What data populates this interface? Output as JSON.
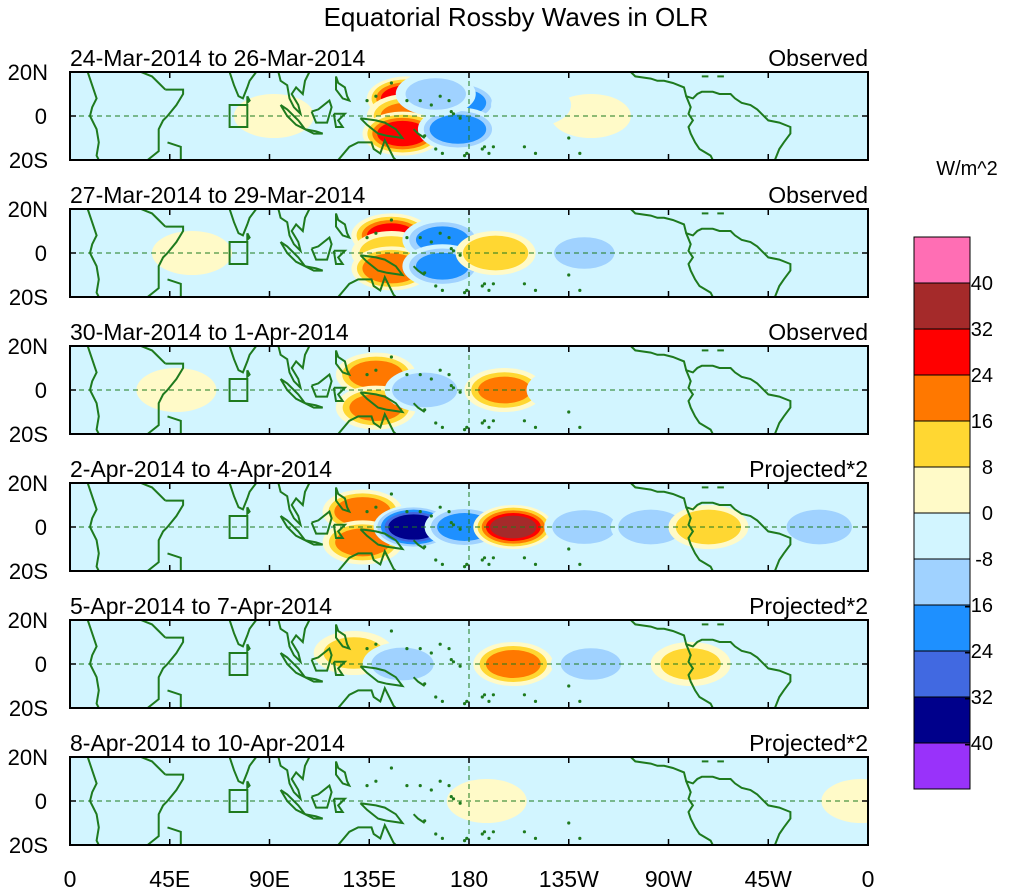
{
  "title": "Equatorial Rossby Waves in OLR",
  "x_tick_labels": [
    "0",
    "45E",
    "90E",
    "135E",
    "180",
    "135W",
    "90W",
    "45W",
    "0"
  ],
  "y_tick_labels": [
    "20N",
    "0",
    "20S"
  ],
  "panels": [
    {
      "date_range": "24-Mar-2014 to 26-Mar-2014",
      "status": "Observed"
    },
    {
      "date_range": "27-Mar-2014 to 29-Mar-2014",
      "status": "Observed"
    },
    {
      "date_range": "30-Mar-2014 to 1-Apr-2014",
      "status": "Observed"
    },
    {
      "date_range": "2-Apr-2014 to 4-Apr-2014",
      "status": "Projected*2"
    },
    {
      "date_range": "5-Apr-2014 to 7-Apr-2014",
      "status": "Projected*2"
    },
    {
      "date_range": "8-Apr-2014 to 10-Apr-2014",
      "status": "Projected*2"
    }
  ],
  "colorbar": {
    "units": "W/m^2",
    "colors_top_to_bottom": [
      "#ff6eb4",
      "#a52a2a",
      "#ff0000",
      "#ff7800",
      "#ffd732",
      "#fffac8",
      "#d2f5ff",
      "#a0d2ff",
      "#1e90ff",
      "#4169e1",
      "#00008b",
      "#9932fa"
    ],
    "labels": [
      "40",
      "32",
      "24",
      "16",
      "8",
      "0",
      "-8",
      "-16",
      "-24",
      "-32",
      "-40"
    ]
  },
  "chart_data": {
    "type": "heatmap",
    "title": "Equatorial Rossby Waves in OLR",
    "units": "W/m^2",
    "contour_levels": [
      -40,
      -32,
      -24,
      -16,
      -8,
      0,
      8,
      16,
      24,
      32,
      40
    ],
    "x_range_deg_east": [
      0,
      360
    ],
    "y_range_deg": [
      -20,
      20
    ],
    "panels": [
      {
        "label": "24-Mar-2014 to 26-Mar-2014",
        "type": "Observed",
        "anomalies": [
          {
            "lon": 152,
            "lat": 8,
            "value": 30
          },
          {
            "lon": 152,
            "lat": 0,
            "value": 18
          },
          {
            "lon": 150,
            "lat": -8,
            "value": 28
          },
          {
            "lon": 175,
            "lat": 6,
            "value": -22
          },
          {
            "lon": 175,
            "lat": -6,
            "value": -22
          },
          {
            "lon": 165,
            "lat": 10,
            "value": -10
          },
          {
            "lon": 235,
            "lat": 0,
            "value": 8
          },
          {
            "lon": 208,
            "lat": 5,
            "value": -6
          },
          {
            "lon": 92,
            "lat": 0,
            "value": 6
          },
          {
            "lon": 40,
            "lat": 0,
            "value": -7
          }
        ]
      },
      {
        "label": "27-Mar-2014 to 29-Mar-2014",
        "type": "Observed",
        "anomalies": [
          {
            "lon": 145,
            "lat": 8,
            "value": 26
          },
          {
            "lon": 145,
            "lat": 0,
            "value": 14
          },
          {
            "lon": 145,
            "lat": -7,
            "value": 24
          },
          {
            "lon": 168,
            "lat": 6,
            "value": -18
          },
          {
            "lon": 168,
            "lat": -6,
            "value": -18
          },
          {
            "lon": 192,
            "lat": 0,
            "value": 16
          },
          {
            "lon": 232,
            "lat": 0,
            "value": -10
          },
          {
            "lon": 268,
            "lat": 0,
            "value": -8
          },
          {
            "lon": 55,
            "lat": 0,
            "value": 8
          }
        ]
      },
      {
        "label": "30-Mar-2014 to 1-Apr-2014",
        "type": "Observed",
        "anomalies": [
          {
            "lon": 138,
            "lat": 7,
            "value": 20
          },
          {
            "lon": 138,
            "lat": -8,
            "value": 18
          },
          {
            "lon": 160,
            "lat": 0,
            "value": -16
          },
          {
            "lon": 196,
            "lat": 0,
            "value": 18
          },
          {
            "lon": 224,
            "lat": 0,
            "value": -8
          },
          {
            "lon": 262,
            "lat": 0,
            "value": -8
          },
          {
            "lon": 330,
            "lat": 0,
            "value": -7
          },
          {
            "lon": 48,
            "lat": 0,
            "value": 8
          }
        ]
      },
      {
        "label": "2-Apr-2014 to 4-Apr-2014",
        "type": "Projected*2",
        "anomalies": [
          {
            "lon": 132,
            "lat": 7,
            "value": 22
          },
          {
            "lon": 132,
            "lat": -7,
            "value": 20
          },
          {
            "lon": 155,
            "lat": 0,
            "value": -40
          },
          {
            "lon": 178,
            "lat": 0,
            "value": -20
          },
          {
            "lon": 200,
            "lat": 0,
            "value": 34
          },
          {
            "lon": 232,
            "lat": 0,
            "value": -14
          },
          {
            "lon": 262,
            "lat": 0,
            "value": -16
          },
          {
            "lon": 288,
            "lat": 0,
            "value": 16
          },
          {
            "lon": 338,
            "lat": 0,
            "value": -16
          }
        ]
      },
      {
        "label": "5-Apr-2014 to 7-Apr-2014",
        "type": "Projected*2",
        "anomalies": [
          {
            "lon": 128,
            "lat": 5,
            "value": 10
          },
          {
            "lon": 150,
            "lat": 0,
            "value": -12
          },
          {
            "lon": 200,
            "lat": 0,
            "value": 20
          },
          {
            "lon": 235,
            "lat": 0,
            "value": -10
          },
          {
            "lon": 280,
            "lat": 0,
            "value": 10
          },
          {
            "lon": 330,
            "lat": 0,
            "value": -8
          }
        ]
      },
      {
        "label": "8-Apr-2014 to 10-Apr-2014",
        "type": "Projected*2",
        "anomalies": [
          {
            "lon": 188,
            "lat": 0,
            "value": 8
          },
          {
            "lon": 230,
            "lat": 0,
            "value": -8
          },
          {
            "lon": 260,
            "lat": 0,
            "value": -6
          },
          {
            "lon": 357,
            "lat": 0,
            "value": 8
          }
        ]
      }
    ]
  }
}
